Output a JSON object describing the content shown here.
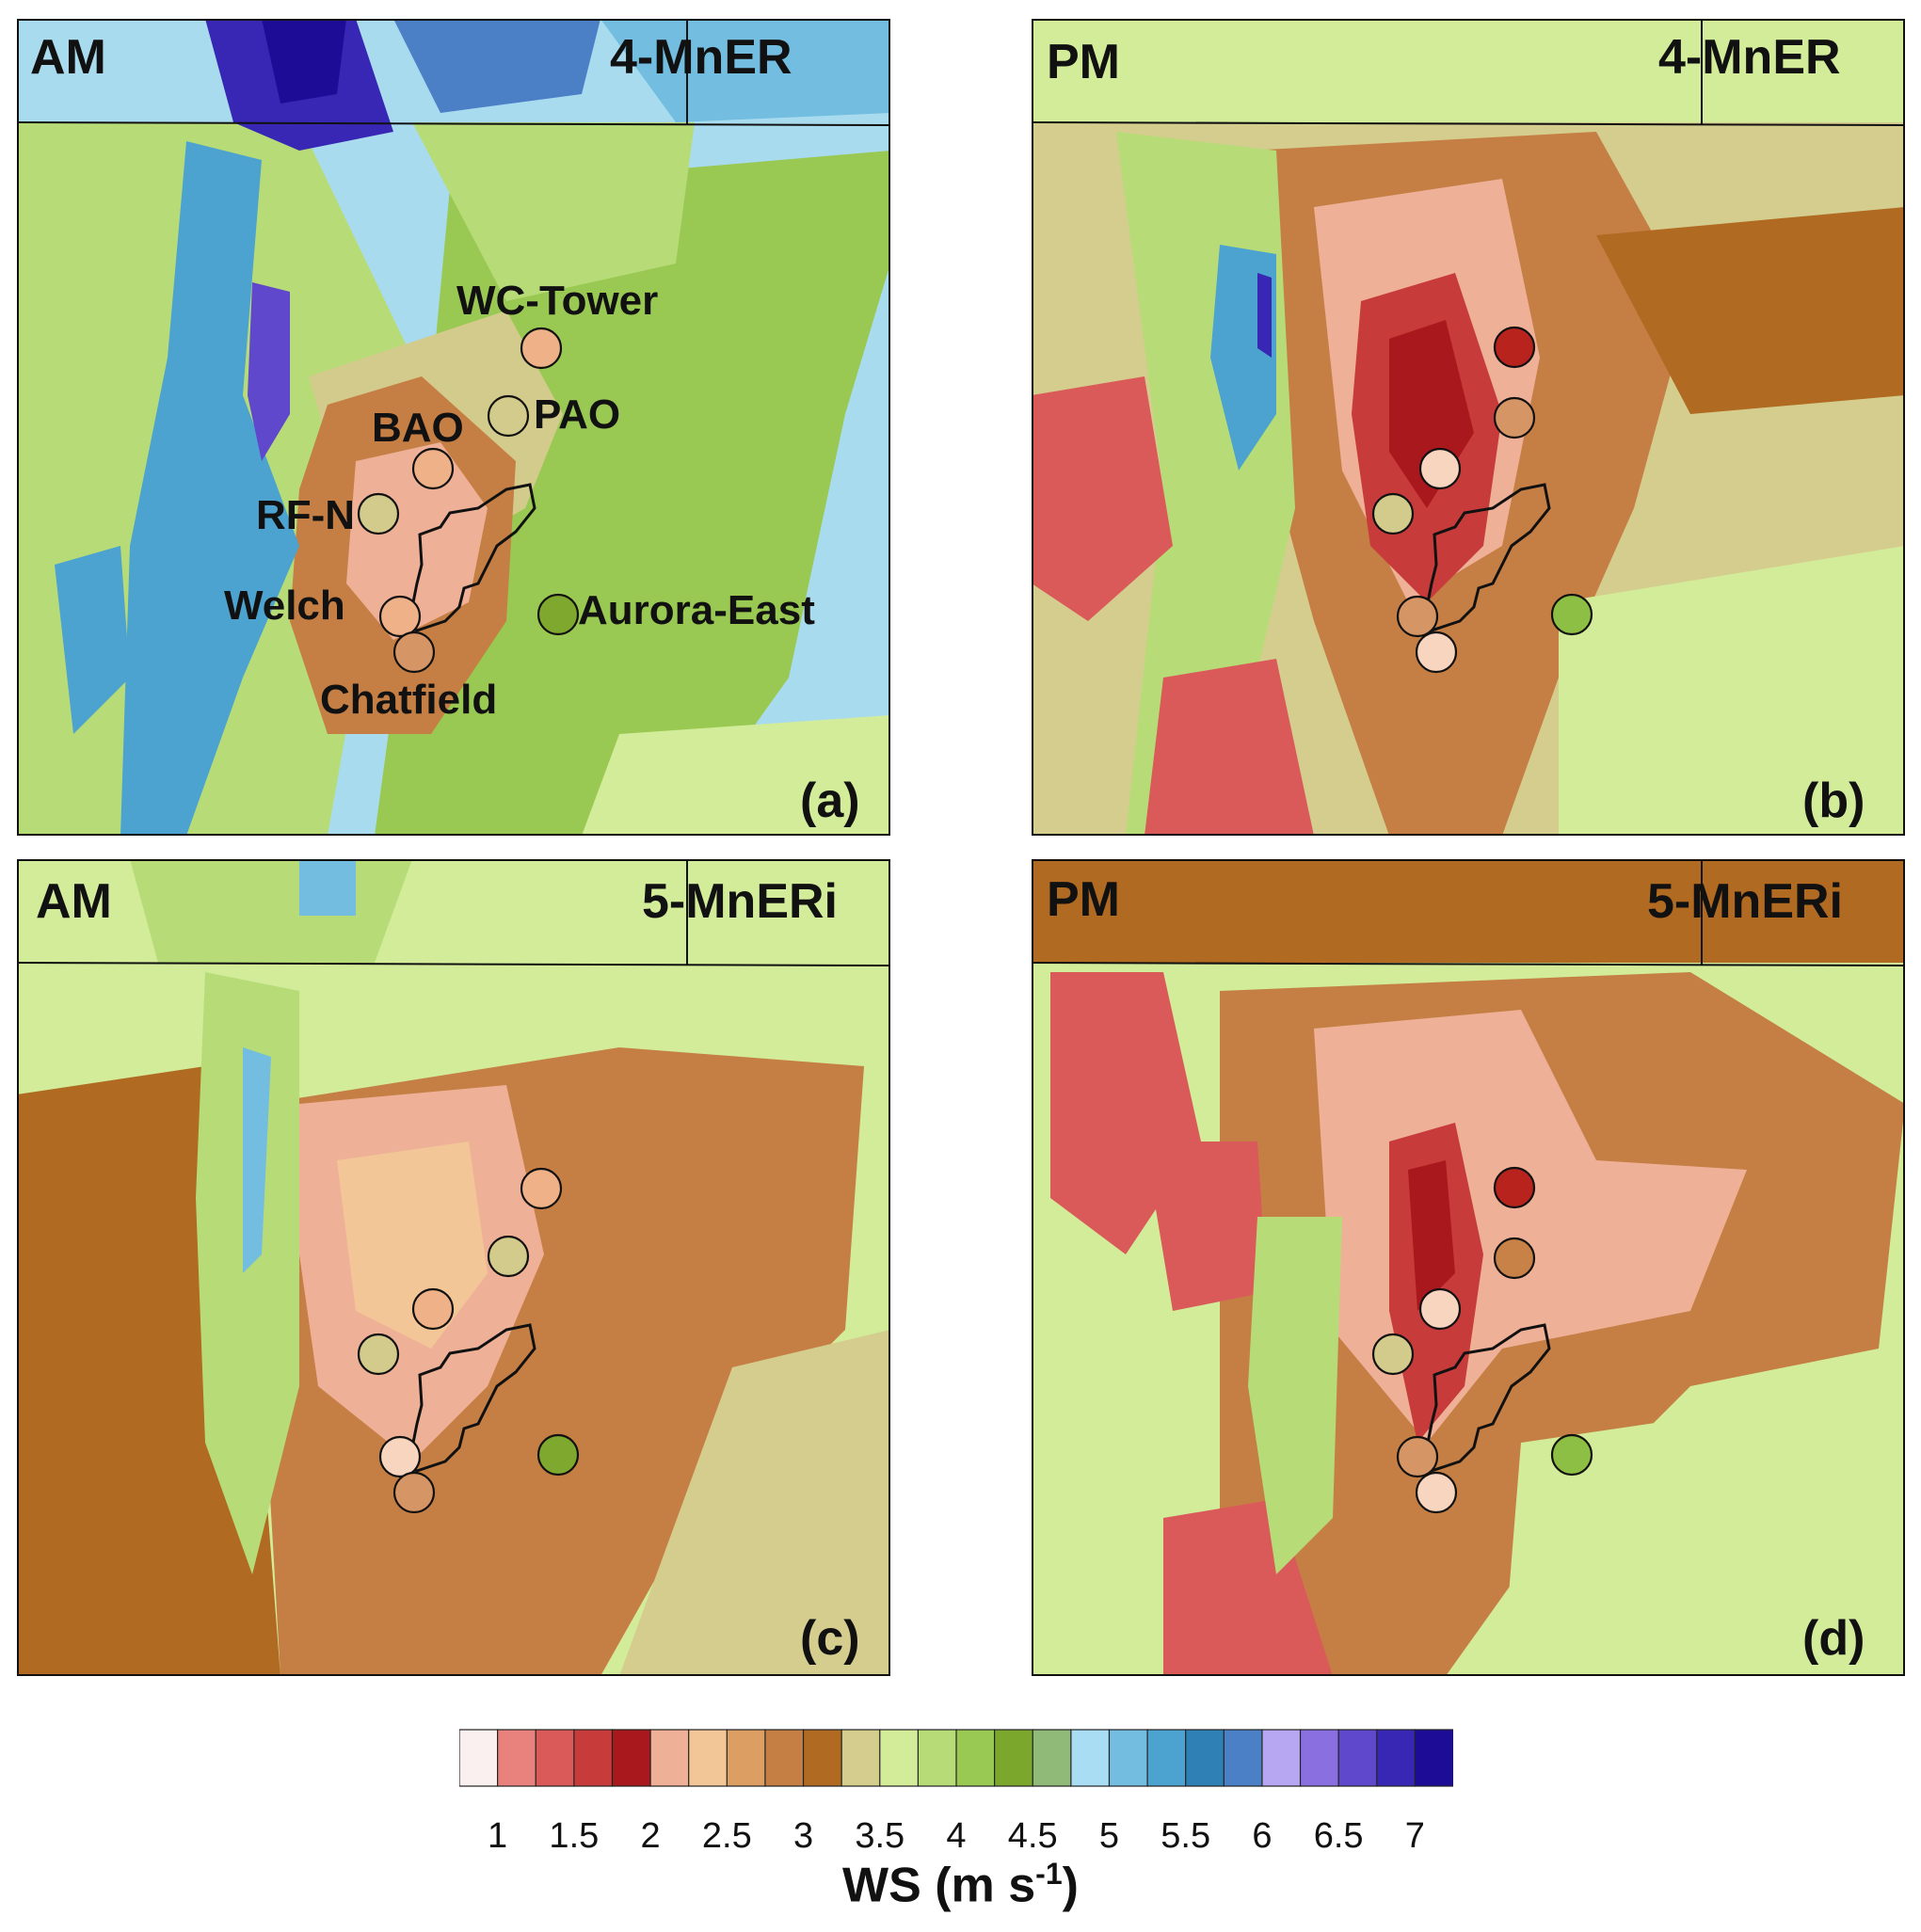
{
  "panels": [
    {
      "id": "a",
      "time": "AM",
      "experiment": "4-MnER",
      "letter": "(a)",
      "scheme": "cool"
    },
    {
      "id": "b",
      "time": "PM",
      "experiment": "4-MnER",
      "letter": "(b)",
      "scheme": "warm"
    },
    {
      "id": "c",
      "time": "AM",
      "experiment": "5-MnERi",
      "letter": "(c)",
      "scheme": "mid"
    },
    {
      "id": "d",
      "time": "PM",
      "experiment": "5-MnERi",
      "letter": "(d)",
      "scheme": "warm2"
    }
  ],
  "sites": {
    "names": [
      "WC-Tower",
      "PAO",
      "BAO",
      "RF-N",
      "Welch",
      "Aurora-East",
      "Chatfield"
    ],
    "colors_by_panel": {
      "a": [
        "#efb187",
        "#d3cb8c",
        "#efb187",
        "#d3cb8c",
        "#efb187",
        "#7ea82e",
        "#d69564"
      ],
      "b": [
        "#b8231e",
        "#d69564",
        "#f8d5bf",
        "#d3cb8c",
        "#d69564",
        "#8dbf45",
        "#f8d5bf"
      ],
      "c": [
        "#efb187",
        "#d3cb8c",
        "#efb187",
        "#d3cb8c",
        "#f8d5bf",
        "#7ea82e",
        "#d69564"
      ],
      "d": [
        "#b8231e",
        "#c88248",
        "#f8d5bf",
        "#d3cb8c",
        "#d69564",
        "#8dbf45",
        "#f8d5bf"
      ]
    }
  },
  "colorbar": {
    "colors": [
      "#fbf0f0",
      "#e9817d",
      "#da5a5a",
      "#c73b3b",
      "#a8181c",
      "#eeb097",
      "#f3c698",
      "#dd9e63",
      "#c57f44",
      "#b06a22",
      "#d4cd8e",
      "#d2ec99",
      "#b7dc77",
      "#9ac953",
      "#7ba82c",
      "#8fba77",
      "#a8ddf3",
      "#72bde0",
      "#4da3cf",
      "#2f80b4",
      "#4c80c6",
      "#b7a7f3",
      "#8a6fe0",
      "#6048cc",
      "#3727b4",
      "#1c0c96"
    ],
    "tick_labels": [
      "1",
      "1.5",
      "2",
      "2.5",
      "3",
      "3.5",
      "4",
      "4.5",
      "5",
      "5.5",
      "6",
      "6.5",
      "7"
    ],
    "title": "WS (m s",
    "title_exp": "-1",
    "title_end": ")"
  }
}
